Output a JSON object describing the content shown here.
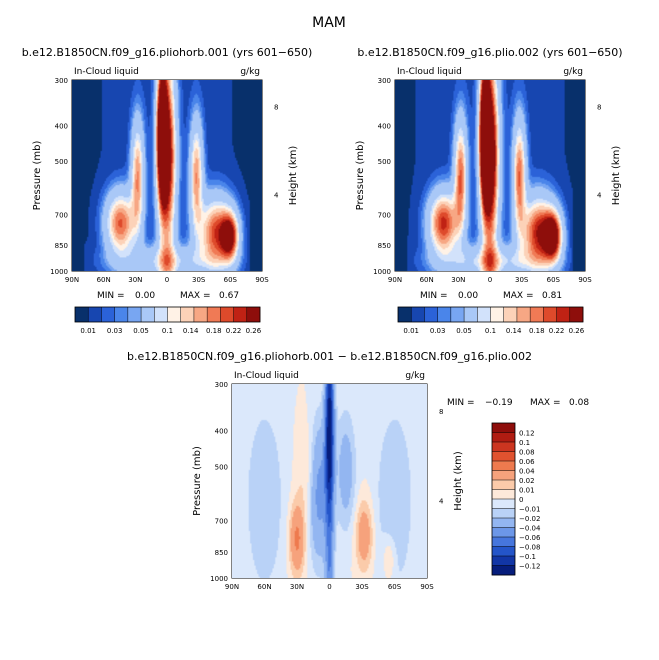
{
  "figure": {
    "title": "MAM"
  },
  "chart_data": [
    {
      "type": "heatmap",
      "title": "b.e12.B1850CN.f09_g16.pliohorb.001 (yrs 601−650)",
      "left_label": "In-Cloud liquid",
      "right_label": "g/kg",
      "xlabel": "",
      "ylabel": "Pressure (mb)",
      "y2label": "Height (km)",
      "x_ticks": [
        "90N",
        "60N",
        "30N",
        "0",
        "30S",
        "60S",
        "90S"
      ],
      "y_ticks": [
        "300",
        "400",
        "500",
        "700",
        "850",
        "1000"
      ],
      "y2_ticks": [
        "8",
        "4"
      ],
      "xlim": [
        90,
        -90
      ],
      "ylim": [
        1000,
        300
      ],
      "min_label": "MIN =",
      "min_value": "0.00",
      "max_label": "MAX =",
      "max_value": "0.67",
      "colorbar": {
        "labels": [
          "0.01",
          "0.03",
          "0.05",
          "0.1",
          "0.14",
          "0.18",
          "0.22",
          "0.26"
        ],
        "colors": [
          "#08306b",
          "#1746b0",
          "#2b62d8",
          "#4a85ea",
          "#78a6f2",
          "#a9c8f7",
          "#d2e2fb",
          "#fff2e6",
          "#fcd2b8",
          "#f7a784",
          "#f07a55",
          "#de4a2b",
          "#c02214",
          "#8e0e0b"
        ]
      },
      "legend": "bottom"
    },
    {
      "type": "heatmap",
      "title": "b.e12.B1850CN.f09_g16.plio.002 (yrs 601−650)",
      "left_label": "In-Cloud liquid",
      "right_label": "g/kg",
      "xlabel": "",
      "ylabel": "Pressure (mb)",
      "y2label": "Height (km)",
      "x_ticks": [
        "90N",
        "60N",
        "30N",
        "0",
        "30S",
        "60S",
        "90S"
      ],
      "y_ticks": [
        "300",
        "400",
        "500",
        "700",
        "850",
        "1000"
      ],
      "y2_ticks": [
        "8",
        "4"
      ],
      "xlim": [
        90,
        -90
      ],
      "ylim": [
        1000,
        300
      ],
      "min_label": "MIN =",
      "min_value": "0.00",
      "max_label": "MAX =",
      "max_value": "0.81",
      "colorbar": {
        "labels": [
          "0.01",
          "0.03",
          "0.05",
          "0.1",
          "0.14",
          "0.18",
          "0.22",
          "0.26"
        ],
        "colors": [
          "#08306b",
          "#1746b0",
          "#2b62d8",
          "#4a85ea",
          "#78a6f2",
          "#a9c8f7",
          "#d2e2fb",
          "#fff2e6",
          "#fcd2b8",
          "#f7a784",
          "#f07a55",
          "#de4a2b",
          "#c02214",
          "#8e0e0b"
        ]
      },
      "legend": "bottom"
    },
    {
      "type": "heatmap",
      "title": "b.e12.B1850CN.f09_g16.pliohorb.001 − b.e12.B1850CN.f09_g16.plio.002",
      "left_label": "In-Cloud liquid",
      "right_label": "g/kg",
      "xlabel": "",
      "ylabel": "Pressure (mb)",
      "y2label": "Height (km)",
      "x_ticks": [
        "90N",
        "60N",
        "30N",
        "0",
        "30S",
        "60S",
        "90S"
      ],
      "y_ticks": [
        "300",
        "400",
        "500",
        "700",
        "850",
        "1000"
      ],
      "y2_ticks": [
        "8",
        "4"
      ],
      "xlim": [
        90,
        -90
      ],
      "ylim": [
        1000,
        300
      ],
      "min_label": "MIN =",
      "min_value": "−0.19",
      "max_label": "MAX =",
      "max_value": "0.08",
      "colorbar": {
        "labels": [
          "0.12",
          "0.1",
          "0.08",
          "0.06",
          "0.04",
          "0.02",
          "0.01",
          "0",
          "−0.01",
          "−0.02",
          "−0.04",
          "−0.06",
          "−0.08",
          "−0.1",
          "−0.12"
        ],
        "colors": [
          "#8e0e0b",
          "#b01c12",
          "#cc3520",
          "#e0522f",
          "#ee7a4e",
          "#f6a27c",
          "#fbcbaa",
          "#fde9da",
          "#dbe8fb",
          "#b9d2f7",
          "#93b6f1",
          "#6c97e8",
          "#4676dd",
          "#2455c9",
          "#1236a6",
          "#061d7c"
        ]
      },
      "legend": "right"
    }
  ]
}
